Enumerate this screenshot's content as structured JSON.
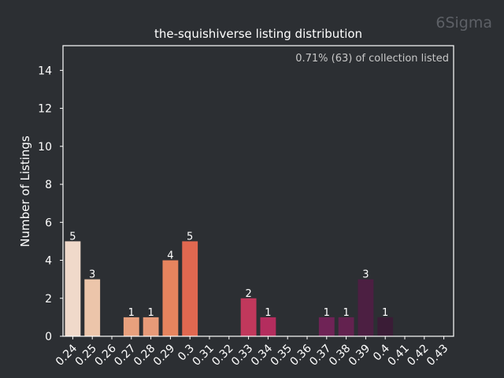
{
  "watermark": "6Sigma",
  "chart_data": {
    "type": "bar",
    "title": "the-squishiverse listing distribution",
    "annotation": "0.71% (63) of collection listed",
    "xlabel": "",
    "ylabel": "Number of Listings",
    "ylim": [
      0,
      15.3
    ],
    "yticks": [
      0,
      2,
      4,
      6,
      8,
      10,
      12,
      14
    ],
    "grid": false,
    "categories": [
      "0.24",
      "0.25",
      "0.26",
      "0.27",
      "0.28",
      "0.29",
      "0.3",
      "0.31",
      "0.32",
      "0.33",
      "0.34",
      "0.35",
      "0.36",
      "0.37",
      "0.38",
      "0.39",
      "0.4",
      "0.41",
      "0.42",
      "0.43"
    ],
    "values": [
      5,
      3,
      0,
      1,
      1,
      4,
      5,
      0,
      0,
      2,
      1,
      0,
      0,
      1,
      1,
      3,
      1,
      0,
      0,
      0
    ],
    "colors": [
      "#f0d9ca",
      "#ecc5aa",
      "#e9ad8b",
      "#e8a07d",
      "#e79a78",
      "#e6845e",
      "#e16850",
      "#d84b4d",
      "#c83f58",
      "#c1385c",
      "#b42d5e",
      "#a0215e",
      "#8a1f5c",
      "#6f2356",
      "#63224f",
      "#4c1f42",
      "#3a1c36",
      "#2e1a2e",
      "#281828",
      "#231624"
    ]
  }
}
